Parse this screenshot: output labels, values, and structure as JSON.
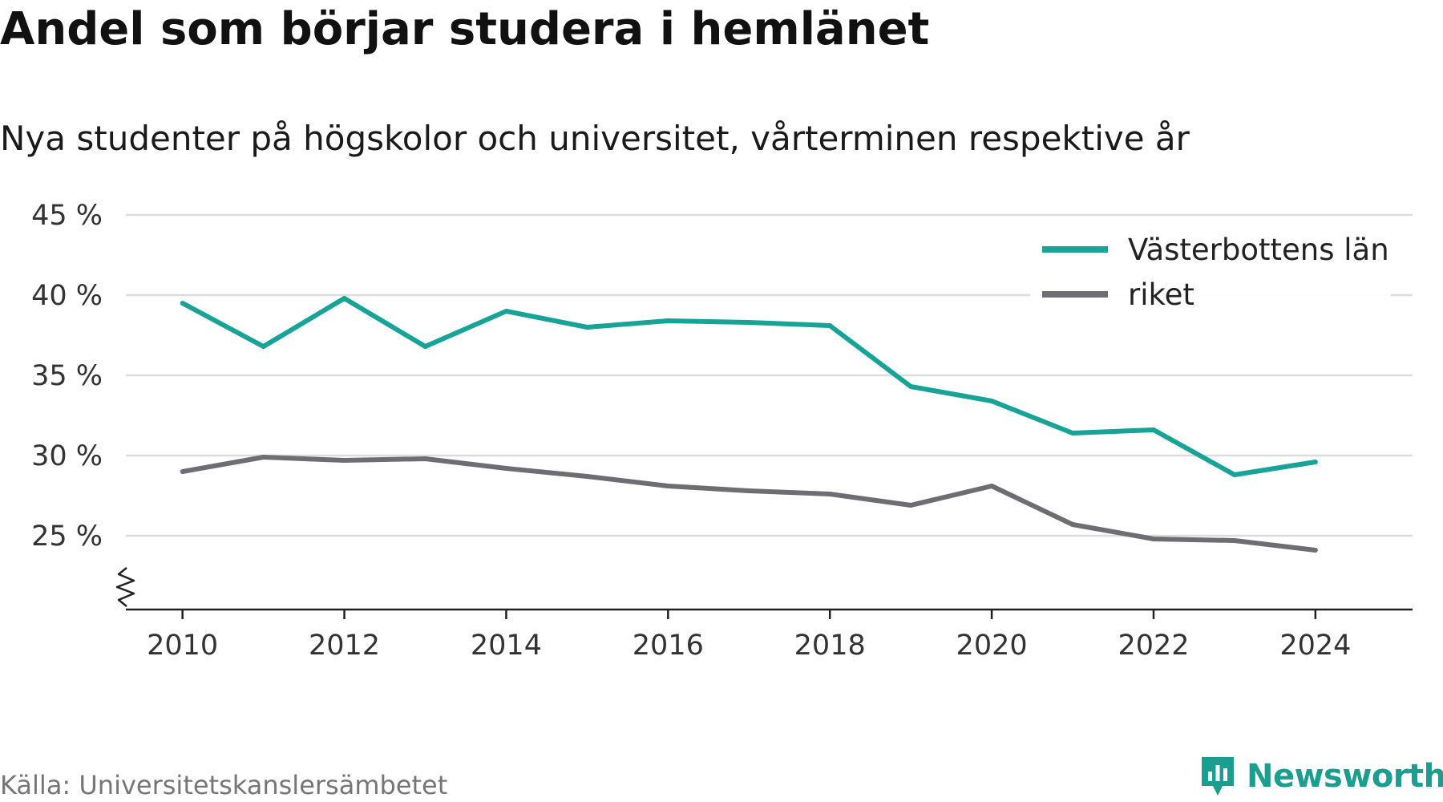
{
  "chart_data": {
    "type": "line",
    "title": "Andel som börjar studera i hemlänet",
    "subtitle": "Nya studenter på högskolor och universitet, vårterminen respektive år",
    "x": [
      2010,
      2011,
      2012,
      2013,
      2014,
      2015,
      2016,
      2017,
      2018,
      2019,
      2020,
      2021,
      2022,
      2023,
      2024
    ],
    "x_ticks": [
      2010,
      2012,
      2014,
      2016,
      2018,
      2020,
      2022,
      2024
    ],
    "x_tick_labels": [
      "2010",
      "2012",
      "2014",
      "2016",
      "2018",
      "2020",
      "2022",
      "2024"
    ],
    "y_ticks": [
      25,
      30,
      35,
      40,
      45
    ],
    "y_tick_labels": [
      "25 %",
      "30 %",
      "35 %",
      "40 %",
      "45 %"
    ],
    "ylim": [
      20.4,
      45
    ],
    "axis_break": true,
    "grid": "horizontal",
    "legend_position": "top-right",
    "series": [
      {
        "name": "Västerbottens län",
        "color": "#17a398",
        "values": [
          39.5,
          36.8,
          39.8,
          36.8,
          39.0,
          38.0,
          38.4,
          38.3,
          38.1,
          34.3,
          33.4,
          31.4,
          31.6,
          28.8,
          29.6
        ]
      },
      {
        "name": "riket",
        "color": "#6e6d73",
        "values": [
          29.0,
          29.9,
          29.7,
          29.8,
          29.2,
          28.7,
          28.1,
          27.8,
          27.6,
          26.9,
          28.1,
          25.7,
          24.8,
          24.7,
          24.1
        ]
      }
    ]
  },
  "footer": {
    "source": "Källa: Universitetskanslersämbetet",
    "brand": "Newsworthy",
    "brand_color": "#1a9e90",
    "brand_icon": "newsworthy-logo-icon"
  }
}
